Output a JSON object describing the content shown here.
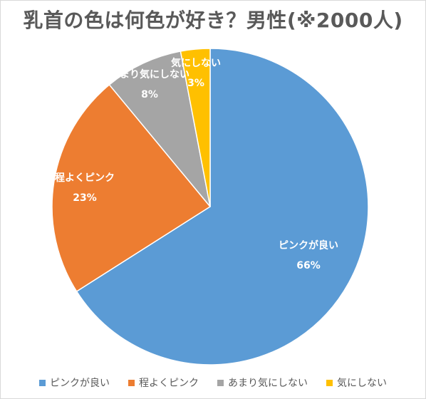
{
  "chart_data": {
    "type": "pie",
    "title": "乳首の色は何色が好き？男性(※2000人)",
    "categories": [
      "ピンクが良い",
      "程よくピンク",
      "あまり気にしない",
      "気にしない"
    ],
    "values": [
      66,
      23,
      8,
      3
    ],
    "value_labels": [
      "66%",
      "23%",
      "8%",
      "3%"
    ],
    "colors": [
      "#5B9BD5",
      "#ED7D31",
      "#A5A5A5",
      "#FFC000"
    ],
    "legend": "bottom"
  }
}
